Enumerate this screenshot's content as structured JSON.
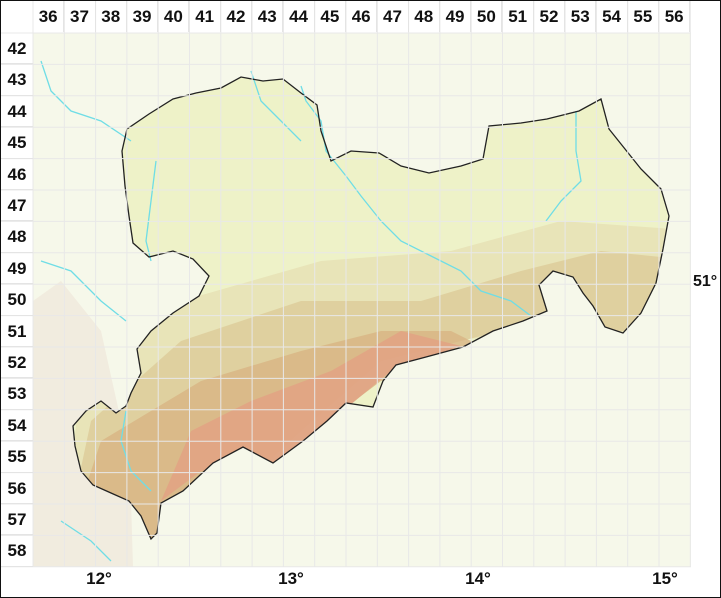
{
  "grid": {
    "columns": [
      "36",
      "37",
      "38",
      "39",
      "40",
      "41",
      "42",
      "43",
      "44",
      "45",
      "46",
      "47",
      "48",
      "49",
      "50",
      "51",
      "52",
      "53",
      "54",
      "55",
      "56"
    ],
    "rows": [
      "42",
      "43",
      "44",
      "45",
      "46",
      "47",
      "48",
      "49",
      "50",
      "51",
      "52",
      "53",
      "54",
      "55",
      "56",
      "57",
      "58"
    ]
  },
  "longitude_labels": [
    "12°",
    "13°",
    "14°",
    "15°"
  ],
  "latitude_labels": [
    "51°"
  ],
  "colors": {
    "outside": "#f6f8ea",
    "lowland": "#eef2c8",
    "hills": "#e6e0b4",
    "uplands": "#dccb98",
    "mountains": "#d8b483",
    "peaks": "#e2a284",
    "river": "#6fdde6",
    "border": "#222222",
    "grid": "#e8e8e8"
  }
}
